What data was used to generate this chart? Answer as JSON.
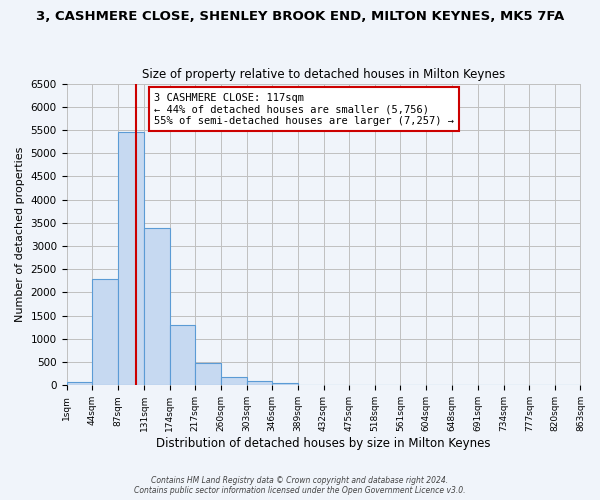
{
  "title": "3, CASHMERE CLOSE, SHENLEY BROOK END, MILTON KEYNES, MK5 7FA",
  "subtitle": "Size of property relative to detached houses in Milton Keynes",
  "xlabel": "Distribution of detached houses by size in Milton Keynes",
  "ylabel": "Number of detached properties",
  "bin_edges": [
    1,
    44,
    87,
    131,
    174,
    217,
    260,
    303,
    346,
    389,
    432,
    475,
    518,
    561,
    604,
    648,
    691,
    734,
    777,
    820,
    863
  ],
  "bar_heights": [
    70,
    2280,
    5450,
    3380,
    1310,
    480,
    190,
    90,
    50,
    0,
    0,
    0,
    0,
    0,
    0,
    0,
    0,
    0,
    0,
    0
  ],
  "bar_color": "#c6d9f1",
  "bar_edge_color": "#5b9bd5",
  "red_line_x": 117,
  "annotation_title": "3 CASHMERE CLOSE: 117sqm",
  "annotation_line1": "← 44% of detached houses are smaller (5,756)",
  "annotation_line2": "55% of semi-detached houses are larger (7,257) →",
  "annotation_box_color": "#ffffff",
  "annotation_box_edge": "#cc0000",
  "red_line_color": "#cc0000",
  "ylim": [
    0,
    6500
  ],
  "yticks": [
    0,
    500,
    1000,
    1500,
    2000,
    2500,
    3000,
    3500,
    4000,
    4500,
    5000,
    5500,
    6000,
    6500
  ],
  "grid_color": "#c0c0c0",
  "background_color": "#f0f4fa",
  "footer_line1": "Contains HM Land Registry data © Crown copyright and database right 2024.",
  "footer_line2": "Contains public sector information licensed under the Open Government Licence v3.0."
}
